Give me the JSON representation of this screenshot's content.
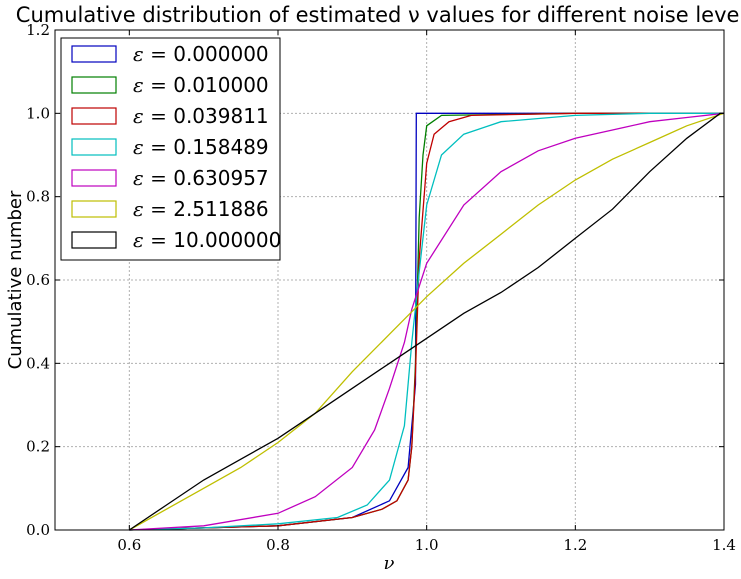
{
  "chart_data": {
    "type": "line",
    "title": "Cumulative distribution of estimated ν values for different noise levels",
    "xlabel": "ν",
    "ylabel": "Cumulative number",
    "xlim": [
      0.5,
      1.4
    ],
    "ylim": [
      0.0,
      1.2
    ],
    "xticks": [
      "0.6",
      "0.8",
      "1.0",
      "1.2",
      "1.4"
    ],
    "yticks": [
      "0.0",
      "0.2",
      "0.4",
      "0.6",
      "0.8",
      "1.0",
      "1.2"
    ],
    "grid": true,
    "legend_position": "top-left",
    "series": [
      {
        "name": "ε = 0.000000",
        "eps_value": "0.000000",
        "color": "#0000bf",
        "x": [
          0.6,
          0.8,
          0.9,
          0.95,
          0.975,
          0.985,
          0.986,
          0.99,
          1.0,
          1.2,
          1.4
        ],
        "y": [
          0.0,
          0.01,
          0.03,
          0.07,
          0.15,
          0.35,
          1.0,
          1.0,
          1.0,
          1.0,
          1.0
        ]
      },
      {
        "name": "ε = 0.010000",
        "eps_value": "0.010000",
        "color": "#007f00",
        "x": [
          0.6,
          0.8,
          0.9,
          0.94,
          0.96,
          0.975,
          0.98,
          0.985,
          0.99,
          0.995,
          1.0,
          1.02,
          1.2,
          1.4
        ],
        "y": [
          0.0,
          0.01,
          0.03,
          0.05,
          0.07,
          0.12,
          0.2,
          0.4,
          0.75,
          0.9,
          0.97,
          0.995,
          1.0,
          1.0
        ]
      },
      {
        "name": "ε = 0.039811",
        "eps_value": "0.039811",
        "color": "#bf0000",
        "x": [
          0.6,
          0.8,
          0.9,
          0.94,
          0.96,
          0.975,
          0.98,
          0.985,
          0.99,
          1.0,
          1.01,
          1.03,
          1.06,
          1.2,
          1.4
        ],
        "y": [
          0.0,
          0.01,
          0.03,
          0.05,
          0.07,
          0.12,
          0.2,
          0.38,
          0.65,
          0.88,
          0.95,
          0.98,
          0.995,
          1.0,
          1.0
        ]
      },
      {
        "name": "ε = 0.158489",
        "eps_value": "0.158489",
        "color": "#00bfbf",
        "x": [
          0.6,
          0.7,
          0.8,
          0.88,
          0.92,
          0.95,
          0.97,
          0.98,
          0.99,
          1.0,
          1.02,
          1.05,
          1.1,
          1.2,
          1.3,
          1.4
        ],
        "y": [
          0.0,
          0.005,
          0.015,
          0.03,
          0.06,
          0.12,
          0.25,
          0.45,
          0.62,
          0.78,
          0.9,
          0.95,
          0.98,
          0.995,
          1.0,
          1.0
        ]
      },
      {
        "name": "ε = 0.630957",
        "eps_value": "0.630957",
        "color": "#bf00bf",
        "x": [
          0.6,
          0.7,
          0.8,
          0.85,
          0.9,
          0.93,
          0.95,
          0.97,
          0.98,
          1.0,
          1.05,
          1.1,
          1.15,
          1.2,
          1.25,
          1.3,
          1.35,
          1.4
        ],
        "y": [
          0.0,
          0.01,
          0.04,
          0.08,
          0.15,
          0.24,
          0.34,
          0.45,
          0.53,
          0.64,
          0.78,
          0.86,
          0.91,
          0.94,
          0.96,
          0.98,
          0.99,
          1.0
        ]
      },
      {
        "name": "ε = 2.511886",
        "eps_value": "2.511886",
        "color": "#bfbf00",
        "x": [
          0.6,
          0.7,
          0.75,
          0.8,
          0.85,
          0.9,
          0.95,
          1.0,
          1.05,
          1.1,
          1.15,
          1.2,
          1.25,
          1.3,
          1.35,
          1.4
        ],
        "y": [
          0.0,
          0.1,
          0.15,
          0.21,
          0.28,
          0.38,
          0.47,
          0.56,
          0.64,
          0.71,
          0.78,
          0.84,
          0.89,
          0.93,
          0.97,
          1.0
        ]
      },
      {
        "name": "ε = 10.000000",
        "eps_value": "10.000000",
        "color": "#000000",
        "x": [
          0.6,
          0.65,
          0.7,
          0.75,
          0.8,
          0.85,
          0.9,
          0.95,
          1.0,
          1.05,
          1.1,
          1.15,
          1.2,
          1.25,
          1.3,
          1.35,
          1.395,
          1.4
        ],
        "y": [
          0.0,
          0.06,
          0.12,
          0.17,
          0.22,
          0.28,
          0.34,
          0.4,
          0.46,
          0.52,
          0.57,
          0.63,
          0.7,
          0.77,
          0.86,
          0.94,
          1.0,
          1.0
        ]
      }
    ]
  }
}
